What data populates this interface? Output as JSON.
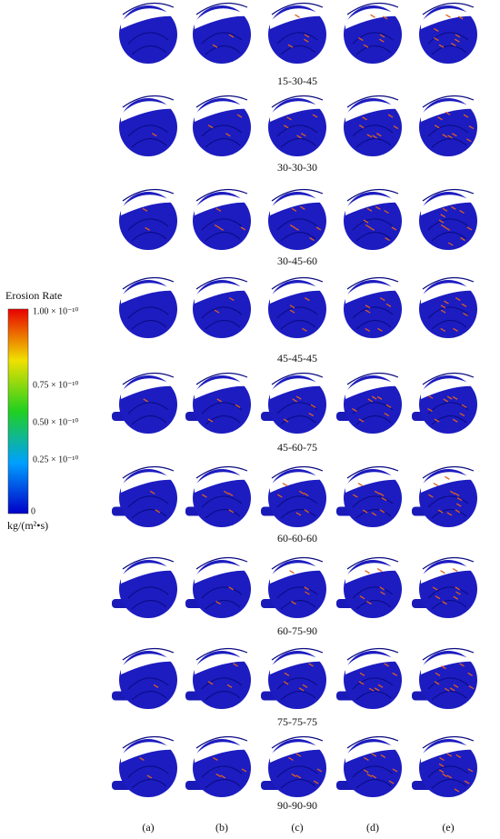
{
  "legend": {
    "title": "Erosion Rate",
    "ticks": [
      "1.00 × 10⁻¹⁰",
      "0.75 × 10⁻¹⁰",
      "0.50 × 10⁻¹⁰",
      "0.25 × 10⁻¹⁰",
      "0"
    ],
    "unit": "kg/(m²•s)"
  },
  "rows": [
    "15-30-45",
    "30-30-30",
    "30-45-60",
    "45-45-45",
    "45-60-75",
    "60-60-60",
    "60-75-90",
    "75-75-75",
    "90-90-90"
  ],
  "columns": [
    "(a)",
    "(b)",
    "(c)",
    "(d)",
    "(e)"
  ]
}
